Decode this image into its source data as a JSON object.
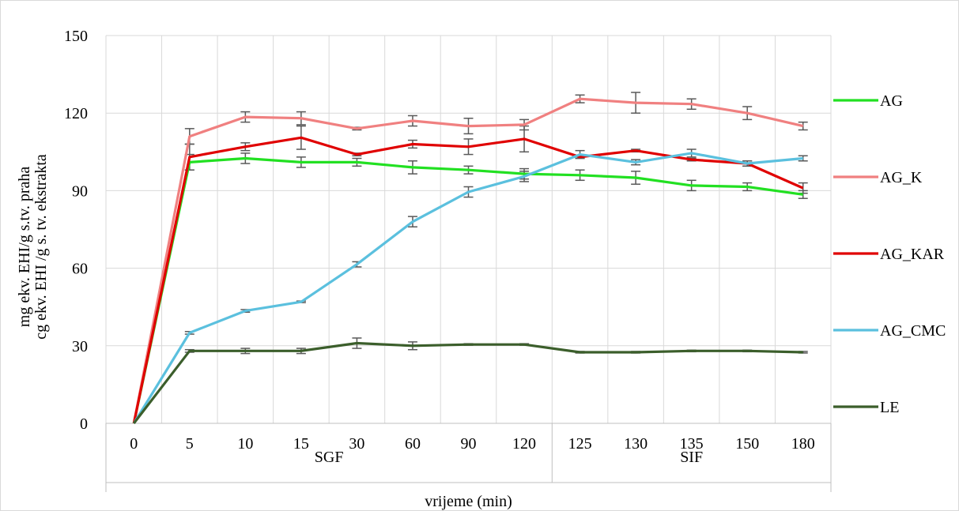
{
  "chart_data": {
    "type": "line",
    "categories": [
      "0",
      "5",
      "10",
      "15",
      "30",
      "60",
      "90",
      "120",
      "125",
      "130",
      "135",
      "150",
      "180"
    ],
    "groups": [
      {
        "label": "SGF",
        "from": 0,
        "to": 7
      },
      {
        "label": "SIF",
        "from": 8,
        "to": 12
      }
    ],
    "xlabel": "vrijeme (min)",
    "ylabel_lines": [
      "mg ekv. EHI/g s.tv. praha",
      "cg ekv. EHI /g s. tv. ekstrakta"
    ],
    "ylim": [
      0,
      150
    ],
    "yticks": [
      0,
      30,
      60,
      90,
      120,
      150
    ],
    "grid": true,
    "legend_position": "right",
    "series": [
      {
        "name": "AG",
        "color": "#22e022",
        "values": [
          0,
          101,
          102.5,
          101,
          101,
          99,
          98,
          96.5,
          96,
          95,
          92,
          91.5,
          88.5
        ],
        "errors": [
          0,
          3,
          2,
          2,
          1.5,
          2.5,
          1.5,
          2,
          2,
          2.5,
          2,
          1.5,
          1.5
        ]
      },
      {
        "name": "AG_K",
        "color": "#f08080",
        "values": [
          0,
          111,
          118.5,
          118,
          114,
          117,
          115,
          115.5,
          125.5,
          124,
          123.5,
          120,
          115
        ],
        "errors": [
          0,
          3,
          2,
          2.5,
          0.5,
          2,
          3,
          2,
          1.5,
          4,
          2,
          2.5,
          1.5
        ]
      },
      {
        "name": "AG_KAR",
        "color": "#e00000",
        "values": [
          0,
          103,
          107,
          110.5,
          104,
          108,
          107,
          110,
          103,
          105.5,
          102,
          100.5,
          91
        ],
        "errors": [
          0,
          5,
          1.5,
          4.5,
          0.5,
          1.5,
          3,
          5,
          0.5,
          0.5,
          0.5,
          1,
          2
        ]
      },
      {
        "name": "AG_CMC",
        "color": "#5bc0de",
        "values": [
          0,
          35,
          43.5,
          47,
          61.5,
          78,
          89.5,
          95.5,
          104,
          101,
          104.5,
          100.5,
          102.5
        ],
        "errors": [
          0,
          0.5,
          0.5,
          0.3,
          1,
          2,
          2,
          2,
          1.5,
          1,
          1.5,
          1,
          1
        ]
      },
      {
        "name": "LE",
        "color": "#3b5e2b",
        "values": [
          0,
          28,
          28,
          28,
          31,
          30,
          30.5,
          30.5,
          27.5,
          27.5,
          28,
          28,
          27.5
        ],
        "errors": [
          0,
          0.5,
          1,
          1,
          2,
          1.5,
          0.3,
          0.3,
          0.3,
          0.3,
          0.3,
          0.3,
          0.3
        ]
      }
    ]
  }
}
